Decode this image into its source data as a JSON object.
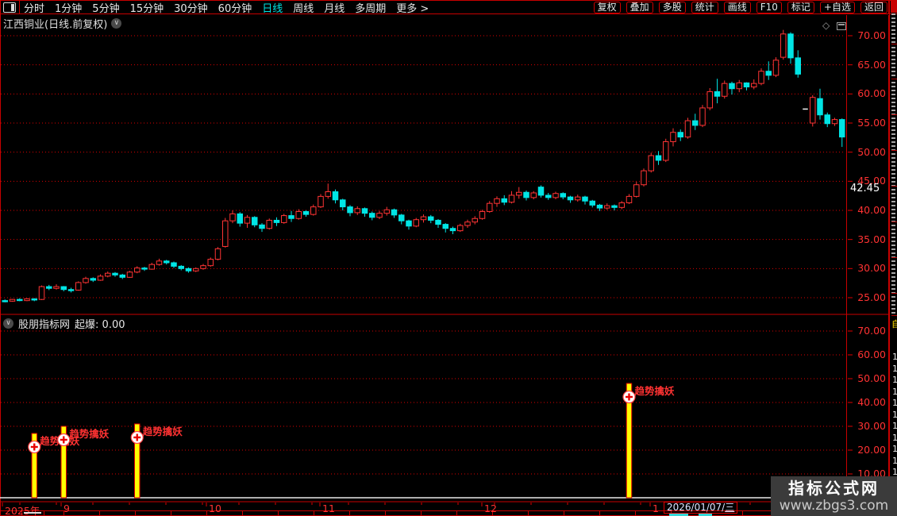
{
  "toolbar": {
    "left_items": [
      "分时",
      "1分钟",
      "5分钟",
      "15分钟",
      "30分钟",
      "60分钟",
      "日线",
      "周线",
      "月线",
      "多周期",
      "更多 >"
    ],
    "active_item": "日线",
    "right_items": [
      "复权",
      "叠加",
      "多股",
      "统计",
      "画线",
      "F10",
      "标记",
      "+自选",
      "返回"
    ]
  },
  "title_bar": {
    "title": "江西铜业(日线.前复权)"
  },
  "sub_header": {
    "name": "股朋指标网",
    "param_label": "起爆:",
    "param_value": "0.00"
  },
  "watermark": {
    "line1": "指标公式网",
    "line2": "www.zbgs3.com"
  },
  "sidebar": {
    "highlight_char": "自",
    "digits": [
      "1",
      "1",
      "1",
      "1",
      "1",
      "1",
      "1",
      "1",
      "1",
      "1",
      "1"
    ]
  },
  "colors": {
    "up": "#ff3434",
    "down": "#00e5e5",
    "grid": "#dc0000",
    "border": "#c80000",
    "bar_fill": "#ffff00",
    "bar_edge": "#e00000",
    "signal_text": "#ff3232",
    "tag_bg": "#0000c8",
    "flat_candle": "#e8e8e8"
  },
  "chart_data": [
    {
      "type": "candlestick",
      "title": "江西铜业(日线.前复权)",
      "ylim": [
        24,
        71
      ],
      "y_ticks": [
        70,
        65,
        60,
        55,
        50,
        45,
        40,
        35,
        30,
        25
      ],
      "y_tick_format": "0.00",
      "price_tag": "42.45",
      "grid": "dotted-horizontal",
      "legend_position": "none",
      "x_labels": [
        {
          "text": "2025年",
          "x": 6
        },
        {
          "text": "9",
          "x": 80
        },
        {
          "text": "10",
          "x": 263
        },
        {
          "text": "11",
          "x": 406
        },
        {
          "text": "12",
          "x": 610
        },
        {
          "text": "1",
          "x": 822
        }
      ],
      "date_tag": {
        "date": "2026/01/07/",
        "weekday": "三"
      },
      "candles": [
        [
          24.5,
          24.7,
          24.2,
          24.4
        ],
        [
          24.4,
          24.8,
          24.3,
          24.7
        ],
        [
          24.7,
          24.9,
          24.4,
          24.5
        ],
        [
          24.5,
          24.9,
          24.4,
          24.8
        ],
        [
          24.8,
          24.9,
          24.4,
          24.6
        ],
        [
          24.7,
          27.1,
          24.6,
          26.9
        ],
        [
          26.9,
          27.2,
          26.3,
          26.6
        ],
        [
          26.6,
          27.3,
          26.4,
          26.9
        ],
        [
          26.9,
          27.0,
          26.1,
          26.4
        ],
        [
          26.4,
          26.7,
          25.9,
          26.2
        ],
        [
          26.3,
          27.8,
          26.2,
          27.6
        ],
        [
          27.6,
          28.6,
          27.4,
          28.3
        ],
        [
          28.3,
          28.5,
          27.7,
          28.0
        ],
        [
          28.0,
          29.0,
          27.9,
          28.7
        ],
        [
          28.7,
          29.5,
          28.5,
          29.2
        ],
        [
          29.2,
          29.4,
          28.6,
          28.9
        ],
        [
          28.9,
          29.1,
          28.2,
          28.5
        ],
        [
          28.5,
          29.6,
          28.4,
          29.4
        ],
        [
          29.4,
          30.4,
          29.2,
          30.1
        ],
        [
          30.1,
          30.3,
          29.6,
          29.9
        ],
        [
          29.9,
          31.0,
          29.8,
          30.7
        ],
        [
          30.7,
          31.7,
          30.5,
          31.3
        ],
        [
          31.3,
          31.5,
          30.7,
          31.0
        ],
        [
          31.0,
          31.2,
          30.1,
          30.4
        ],
        [
          30.4,
          30.6,
          29.7,
          30.0
        ],
        [
          30.0,
          30.2,
          29.3,
          29.6
        ],
        [
          29.6,
          30.2,
          29.4,
          30.0
        ],
        [
          30.0,
          30.8,
          29.8,
          30.5
        ],
        [
          30.5,
          31.9,
          30.3,
          31.6
        ],
        [
          31.6,
          33.7,
          31.4,
          33.4
        ],
        [
          33.8,
          38.7,
          33.6,
          38.2
        ],
        [
          38.2,
          40.0,
          37.8,
          39.4
        ],
        [
          39.4,
          39.7,
          37.2,
          37.8
        ],
        [
          37.8,
          39.2,
          37.0,
          38.8
        ],
        [
          38.8,
          39.0,
          37.1,
          37.5
        ],
        [
          37.5,
          37.8,
          36.3,
          36.9
        ],
        [
          36.9,
          38.6,
          36.7,
          38.3
        ],
        [
          38.3,
          38.8,
          37.3,
          37.9
        ],
        [
          37.9,
          39.4,
          37.7,
          39.1
        ],
        [
          39.1,
          39.9,
          38.0,
          38.6
        ],
        [
          38.6,
          40.2,
          38.4,
          39.8
        ],
        [
          39.8,
          40.0,
          38.9,
          39.3
        ],
        [
          39.3,
          41.0,
          39.1,
          40.6
        ],
        [
          40.6,
          42.8,
          40.4,
          42.4
        ],
        [
          42.4,
          44.6,
          42.0,
          43.2
        ],
        [
          43.2,
          43.6,
          41.2,
          41.8
        ],
        [
          41.8,
          42.0,
          40.0,
          40.6
        ],
        [
          40.6,
          40.9,
          39.0,
          39.6
        ],
        [
          39.6,
          40.7,
          39.2,
          40.3
        ],
        [
          40.3,
          40.5,
          38.9,
          39.5
        ],
        [
          39.5,
          39.8,
          38.3,
          38.8
        ],
        [
          38.8,
          39.9,
          38.5,
          39.5
        ],
        [
          39.5,
          40.6,
          39.1,
          40.1
        ],
        [
          40.1,
          40.3,
          38.7,
          39.2
        ],
        [
          39.2,
          39.4,
          37.6,
          38.2
        ],
        [
          38.2,
          38.4,
          36.7,
          37.3
        ],
        [
          37.3,
          38.7,
          37.1,
          38.4
        ],
        [
          38.4,
          39.3,
          37.9,
          38.9
        ],
        [
          38.9,
          39.2,
          37.8,
          38.3
        ],
        [
          38.3,
          38.5,
          37.0,
          37.6
        ],
        [
          37.6,
          37.8,
          36.2,
          36.9
        ],
        [
          36.9,
          37.2,
          35.9,
          36.5
        ],
        [
          36.5,
          37.7,
          36.3,
          37.4
        ],
        [
          37.4,
          38.4,
          37.0,
          38.0
        ],
        [
          38.0,
          39.0,
          37.6,
          38.6
        ],
        [
          38.6,
          40.1,
          38.4,
          39.8
        ],
        [
          39.8,
          41.6,
          39.6,
          41.2
        ],
        [
          41.2,
          42.4,
          40.6,
          42.0
        ],
        [
          42.0,
          42.6,
          40.9,
          41.4
        ],
        [
          41.4,
          43.3,
          41.2,
          42.6
        ],
        [
          42.6,
          44.0,
          42.0,
          43.1
        ],
        [
          43.1,
          43.4,
          41.7,
          42.2
        ],
        [
          42.2,
          43.3,
          41.9,
          43.0
        ],
        [
          44.0,
          44.3,
          42.2,
          42.6
        ],
        [
          42.6,
          43.0,
          41.8,
          42.2
        ],
        [
          42.2,
          43.2,
          41.9,
          42.9
        ],
        [
          42.9,
          43.1,
          41.9,
          42.3
        ],
        [
          42.3,
          42.5,
          41.3,
          41.8
        ],
        [
          41.8,
          42.7,
          41.5,
          42.3
        ],
        [
          42.3,
          42.5,
          41.0,
          41.6
        ],
        [
          41.6,
          41.8,
          40.5,
          40.9
        ],
        [
          40.9,
          41.1,
          39.9,
          40.4
        ],
        [
          40.4,
          41.2,
          40.1,
          40.8
        ],
        [
          40.8,
          41.0,
          40.0,
          40.5
        ],
        [
          40.5,
          41.6,
          40.2,
          41.3
        ],
        [
          41.3,
          42.8,
          41.1,
          42.4
        ],
        [
          42.4,
          44.9,
          42.2,
          44.4
        ],
        [
          44.4,
          47.2,
          44.1,
          46.8
        ],
        [
          46.8,
          49.9,
          46.5,
          49.4
        ],
        [
          49.4,
          50.2,
          47.8,
          48.6
        ],
        [
          48.6,
          52.3,
          48.3,
          51.8
        ],
        [
          51.8,
          54.1,
          51.0,
          53.4
        ],
        [
          53.4,
          53.9,
          51.9,
          52.6
        ],
        [
          52.6,
          55.9,
          52.3,
          55.4
        ],
        [
          55.4,
          56.6,
          53.8,
          54.6
        ],
        [
          54.6,
          58.1,
          54.3,
          57.6
        ],
        [
          57.6,
          61.0,
          57.2,
          60.4
        ],
        [
          60.4,
          62.6,
          58.4,
          59.6
        ],
        [
          59.6,
          62.3,
          59.2,
          61.8
        ],
        [
          61.8,
          62.1,
          59.9,
          60.9
        ],
        [
          60.9,
          62.4,
          60.3,
          61.9
        ],
        [
          61.9,
          62.0,
          60.6,
          61.2
        ],
        [
          61.2,
          62.5,
          60.8,
          61.8
        ],
        [
          61.8,
          64.4,
          61.5,
          63.9
        ],
        [
          63.9,
          65.6,
          62.4,
          63.2
        ],
        [
          63.2,
          66.3,
          62.9,
          65.8
        ],
        [
          66.3,
          71.0,
          65.9,
          70.3
        ],
        [
          70.3,
          70.6,
          65.2,
          66.2
        ],
        [
          66.2,
          67.5,
          62.8,
          63.4
        ],
        [
          57.4,
          57.4,
          57.4,
          57.4
        ],
        [
          55.0,
          59.8,
          54.4,
          59.4
        ],
        [
          59.2,
          60.9,
          55.6,
          56.4
        ],
        [
          56.4,
          56.8,
          54.3,
          54.9
        ],
        [
          54.9,
          55.9,
          54.5,
          55.6
        ],
        [
          55.6,
          55.8,
          50.9,
          52.6
        ]
      ]
    },
    {
      "type": "bar",
      "name": "股朋指标网",
      "param_label": "起爆:",
      "param_value": "0.00",
      "ylim": [
        0,
        75
      ],
      "y_ticks": [
        70,
        60,
        50,
        40,
        30,
        20,
        10
      ],
      "baseline_value": 0,
      "signals": [
        {
          "index": 4,
          "value": 27,
          "label": "趋势擒妖"
        },
        {
          "index": 8,
          "value": 30,
          "label": "趋势擒妖"
        },
        {
          "index": 18,
          "value": 31,
          "label": "趋势擒妖"
        },
        {
          "index": 85,
          "value": 48,
          "label": "趋势擒妖"
        }
      ]
    }
  ]
}
